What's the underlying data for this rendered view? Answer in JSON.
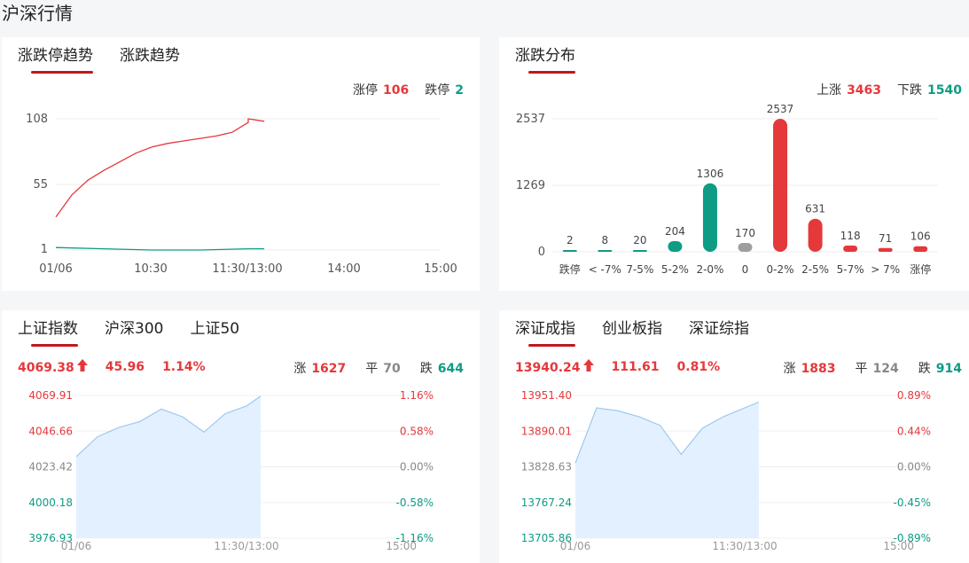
{
  "page": {
    "title": "沪深行情"
  },
  "card1": {
    "tabs": [
      {
        "label": "涨跌停趋势",
        "active": true
      },
      {
        "label": "涨跌趋势",
        "active": false
      }
    ],
    "limit_up_label": "涨停",
    "limit_up_value": "106",
    "limit_down_label": "跌停",
    "limit_down_value": "2",
    "y_ticks": [
      "108",
      "55",
      "1"
    ],
    "x_ticks": [
      "01/06",
      "10:30",
      "11:30/13:00",
      "14:00",
      "15:00"
    ]
  },
  "card2": {
    "tabs": [
      {
        "label": "涨跌分布",
        "active": true
      }
    ],
    "up_label": "上涨",
    "up_value": "3463",
    "down_label": "下跌",
    "down_value": "1540",
    "y_ticks": [
      "2537",
      "1269",
      "0"
    ]
  },
  "card3": {
    "tabs": [
      {
        "label": "上证指数",
        "active": true
      },
      {
        "label": "沪深300",
        "active": false
      },
      {
        "label": "上证50",
        "active": false
      }
    ],
    "price": "4069.38",
    "change": "45.96",
    "change_pct": "1.14%",
    "up_label": "涨",
    "up_value": "1627",
    "flat_label": "平",
    "flat_value": "70",
    "down_label": "跌",
    "down_value": "644",
    "y_left": [
      "4069.91",
      "4046.66",
      "4023.42",
      "4000.18",
      "3976.93"
    ],
    "y_right": [
      "1.16%",
      "0.58%",
      "0.00%",
      "-0.58%",
      "-1.16%"
    ],
    "x_ticks": [
      "01/06",
      "11:30/13:00",
      "15:00"
    ]
  },
  "card4": {
    "tabs": [
      {
        "label": "深证成指",
        "active": true
      },
      {
        "label": "创业板指",
        "active": false
      },
      {
        "label": "深证综指",
        "active": false
      }
    ],
    "price": "13940.24",
    "change": "111.61",
    "change_pct": "0.81%",
    "up_label": "涨",
    "up_value": "1883",
    "flat_label": "平",
    "flat_value": "124",
    "down_label": "跌",
    "down_value": "914",
    "y_left": [
      "13951.40",
      "13890.01",
      "13828.63",
      "13767.24",
      "13705.86"
    ],
    "y_right": [
      "0.89%",
      "0.44%",
      "0.00%",
      "-0.45%",
      "-0.89%"
    ],
    "x_ticks": [
      "01/06",
      "11:30/13:00",
      "15:00"
    ]
  },
  "chart_data": [
    {
      "type": "line",
      "title": "涨跌停趋势",
      "x_range": [
        "09:30",
        "15:00"
      ],
      "ylim": [
        1,
        108
      ],
      "series": [
        {
          "name": "涨停",
          "color": "#e5383b",
          "x": [
            "09:30",
            "09:40",
            "09:50",
            "10:00",
            "10:10",
            "10:20",
            "10:30",
            "10:40",
            "10:50",
            "11:00",
            "11:10",
            "11:20",
            "11:30",
            "13:00",
            "13:10"
          ],
          "values": [
            28,
            46,
            58,
            66,
            73,
            80,
            85,
            88,
            90,
            92,
            94,
            97,
            105,
            108,
            106
          ]
        },
        {
          "name": "跌停",
          "color": "#0e9c84",
          "x": [
            "09:30",
            "10:00",
            "10:30",
            "11:00",
            "11:30",
            "13:10"
          ],
          "values": [
            3,
            2,
            1,
            1,
            2,
            2
          ]
        }
      ]
    },
    {
      "type": "bar",
      "title": "涨跌分布",
      "categories": [
        "跌停",
        "< -7%",
        "7-5%",
        "5-2%",
        "2-0%",
        "0",
        "0-2%",
        "2-5%",
        "5-7%",
        "> 7%",
        "涨停"
      ],
      "values": [
        2,
        8,
        20,
        204,
        1306,
        170,
        2537,
        631,
        118,
        71,
        106
      ],
      "colors": [
        "#0e9c84",
        "#0e9c84",
        "#0e9c84",
        "#0e9c84",
        "#0e9c84",
        "#9e9e9e",
        "#e5383b",
        "#e5383b",
        "#e5383b",
        "#e5383b",
        "#e5383b"
      ],
      "ylim": [
        0,
        2537
      ]
    },
    {
      "type": "area",
      "title": "上证指数",
      "ylim": [
        3976.93,
        4069.91
      ],
      "x": [
        "09:30",
        "09:45",
        "10:00",
        "10:15",
        "10:30",
        "10:45",
        "11:00",
        "11:15",
        "11:30",
        "13:10"
      ],
      "values": [
        4030,
        4043,
        4049,
        4053,
        4061,
        4056,
        4046,
        4058,
        4063,
        4069.5
      ]
    },
    {
      "type": "area",
      "title": "深证成指",
      "ylim": [
        13705.86,
        13951.4
      ],
      "x": [
        "09:30",
        "09:45",
        "10:00",
        "10:15",
        "10:30",
        "10:45",
        "11:00",
        "11:15",
        "11:30",
        "13:10"
      ],
      "values": [
        13835,
        13930,
        13925,
        13915,
        13900,
        13850,
        13895,
        13915,
        13930,
        13940
      ]
    }
  ]
}
